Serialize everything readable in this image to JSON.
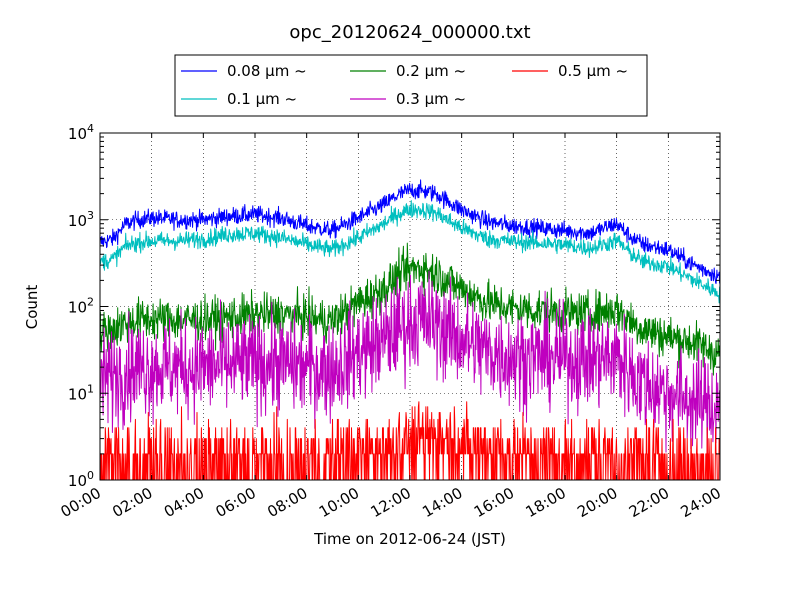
{
  "chart_data": {
    "type": "line",
    "title": "opc_20120624_000000.txt",
    "xlabel": "Time on 2012-06-24 (JST)",
    "ylabel": "Count",
    "yscale": "log",
    "ylim": [
      1,
      10000
    ],
    "xlim_hours": [
      0,
      24
    ],
    "x_ticks": [
      "00:00",
      "02:00",
      "04:00",
      "06:00",
      "08:00",
      "10:00",
      "12:00",
      "14:00",
      "16:00",
      "18:00",
      "20:00",
      "22:00",
      "24:00"
    ],
    "y_ticks": [
      {
        "base": "10",
        "exp": "0",
        "value": 1
      },
      {
        "base": "10",
        "exp": "1",
        "value": 10
      },
      {
        "base": "10",
        "exp": "2",
        "value": 100
      },
      {
        "base": "10",
        "exp": "3",
        "value": 1000
      },
      {
        "base": "10",
        "exp": "4",
        "value": 10000
      }
    ],
    "grid": true,
    "legend": {
      "placement": "top",
      "border": "#000000"
    },
    "series": [
      {
        "name": "0.08 μm ~",
        "color": "#0000ff",
        "noise": 0.05,
        "hours": [
          0,
          0.5,
          1,
          1.5,
          2,
          3,
          4,
          5,
          6,
          7,
          8,
          8.5,
          9,
          10,
          11,
          11.5,
          12,
          12.5,
          13,
          14,
          15,
          16,
          17,
          18,
          19,
          19.5,
          20,
          20.5,
          21,
          22,
          23,
          24
        ],
        "values": [
          550,
          600,
          900,
          1000,
          1050,
          1000,
          1000,
          1100,
          1150,
          1050,
          850,
          800,
          750,
          1050,
          1500,
          1900,
          2200,
          2150,
          2000,
          1300,
          950,
          850,
          800,
          750,
          700,
          800,
          900,
          650,
          520,
          450,
          300,
          220
        ]
      },
      {
        "name": "0.1 μm ~",
        "color": "#00bfbf",
        "noise": 0.05,
        "hours": [
          0,
          0.5,
          1,
          1.5,
          2,
          3,
          4,
          5,
          6,
          7,
          8,
          8.5,
          9,
          10,
          11,
          11.5,
          12,
          12.5,
          13,
          14,
          15,
          16,
          17,
          18,
          19,
          19.5,
          20,
          20.5,
          21,
          22,
          23,
          24
        ],
        "values": [
          330,
          350,
          500,
          550,
          570,
          570,
          600,
          680,
          700,
          620,
          520,
          480,
          450,
          620,
          900,
          1150,
          1320,
          1300,
          1200,
          800,
          600,
          560,
          540,
          510,
          470,
          520,
          580,
          420,
          330,
          290,
          200,
          140
        ]
      },
      {
        "name": "0.2 μm ~",
        "color": "#008000",
        "noise": 0.12,
        "hours": [
          0,
          0.5,
          1,
          1.5,
          2,
          3,
          4,
          5,
          6,
          7,
          8,
          8.5,
          9,
          10,
          11,
          11.5,
          12,
          12.5,
          13,
          14,
          15,
          16,
          17,
          18,
          19,
          19.5,
          20,
          20.5,
          21,
          22,
          23,
          24
        ],
        "values": [
          50,
          55,
          65,
          70,
          72,
          70,
          70,
          75,
          80,
          80,
          75,
          70,
          68,
          110,
          160,
          220,
          270,
          280,
          240,
          160,
          110,
          95,
          90,
          85,
          82,
          88,
          92,
          70,
          55,
          45,
          38,
          28
        ]
      },
      {
        "name": "0.3 μm ~",
        "color": "#bf00bf",
        "noise": 0.28,
        "hours": [
          0,
          0.5,
          1,
          1.5,
          2,
          3,
          4,
          5,
          6,
          7,
          8,
          8.5,
          9,
          10,
          11,
          11.5,
          12,
          12.5,
          13,
          14,
          15,
          16,
          17,
          18,
          19,
          19.5,
          20,
          20.5,
          21,
          22,
          23,
          24
        ],
        "values": [
          14,
          16,
          18,
          20,
          20,
          20,
          20,
          21,
          22,
          22,
          20,
          19,
          19,
          30,
          40,
          55,
          65,
          70,
          62,
          42,
          30,
          26,
          26,
          25,
          24,
          25,
          26,
          18,
          13,
          10,
          8,
          7
        ]
      },
      {
        "name": "0.5 μm ~",
        "color": "#ff0000",
        "noise": 0,
        "hours": [
          0,
          2,
          4,
          6,
          8,
          9,
          10,
          11,
          12,
          13,
          14,
          15,
          16,
          18,
          20,
          22,
          24
        ],
        "values": [
          1.5,
          1.6,
          1.6,
          1.6,
          1.6,
          1.7,
          2.0,
          2.4,
          3.0,
          3.2,
          2.8,
          2.2,
          1.9,
          1.8,
          1.7,
          1.5,
          1.4
        ]
      }
    ]
  }
}
